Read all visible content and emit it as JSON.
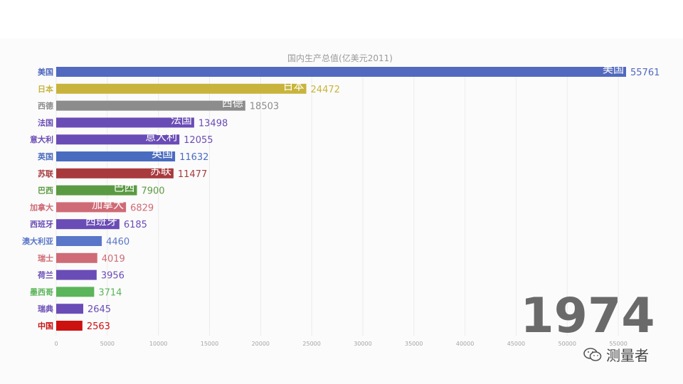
{
  "chart_data": {
    "type": "bar",
    "orientation": "horizontal",
    "title": "国内生产总值(亿美元2011)",
    "year_label": "1974",
    "xlim": [
      0,
      55761
    ],
    "x_ticks": [
      0,
      5000,
      10000,
      15000,
      20000,
      25000,
      30000,
      35000,
      40000,
      45000,
      50000,
      55000
    ],
    "grid": true,
    "categories": [
      "美国",
      "日本",
      "西德",
      "法国",
      "意大利",
      "英国",
      "苏联",
      "巴西",
      "加拿大",
      "西班牙",
      "澳大利亚",
      "瑞士",
      "荷兰",
      "墨西哥",
      "瑞典",
      "中国"
    ],
    "values": [
      55761,
      24472,
      18503,
      13498,
      12055,
      11632,
      11477,
      7900,
      6829,
      6185,
      4460,
      4019,
      3956,
      3714,
      2645,
      2563
    ],
    "bar_colors": [
      "#5169bf",
      "#c8b43c",
      "#8c8c8c",
      "#6a4cb6",
      "#6a4cb6",
      "#4a6cc0",
      "#a83a3e",
      "#5a9a42",
      "#cf6b76",
      "#6a4cb6",
      "#5a76c8",
      "#cf6b76",
      "#6a4cb6",
      "#5bb55a",
      "#6a4cb6",
      "#cc1111"
    ],
    "inner_label_categories": [
      "美国",
      "日本",
      "西德",
      "法国",
      "意大利",
      "英国",
      "苏联",
      "巴西",
      "加拿大",
      "西班牙"
    ]
  },
  "watermark": {
    "text": "测量者",
    "icon": "wechat-icon"
  }
}
